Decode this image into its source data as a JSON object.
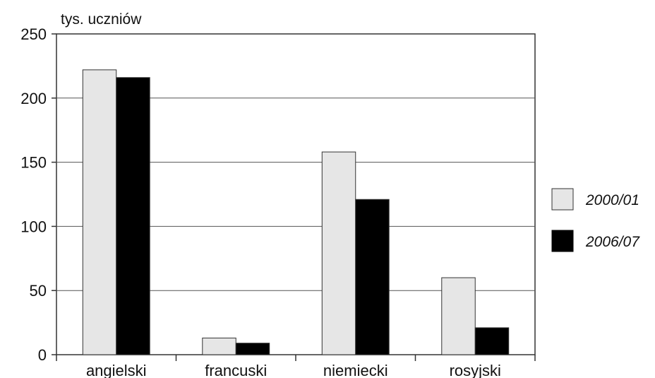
{
  "chart_data": {
    "type": "bar",
    "ylabel": "tys. uczniów",
    "categories": [
      "angielski",
      "francuski",
      "niemiecki",
      "rosyjski"
    ],
    "series": [
      {
        "name": "2000/01",
        "color": "#e6e6e6",
        "values": [
          222,
          13,
          158,
          60
        ]
      },
      {
        "name": "2006/07",
        "color": "#000000",
        "values": [
          216,
          9,
          121,
          21
        ]
      }
    ],
    "ylim": [
      0,
      250
    ],
    "yticks": [
      0,
      50,
      100,
      150,
      200,
      250
    ],
    "grid": true,
    "legend_position": "right"
  }
}
